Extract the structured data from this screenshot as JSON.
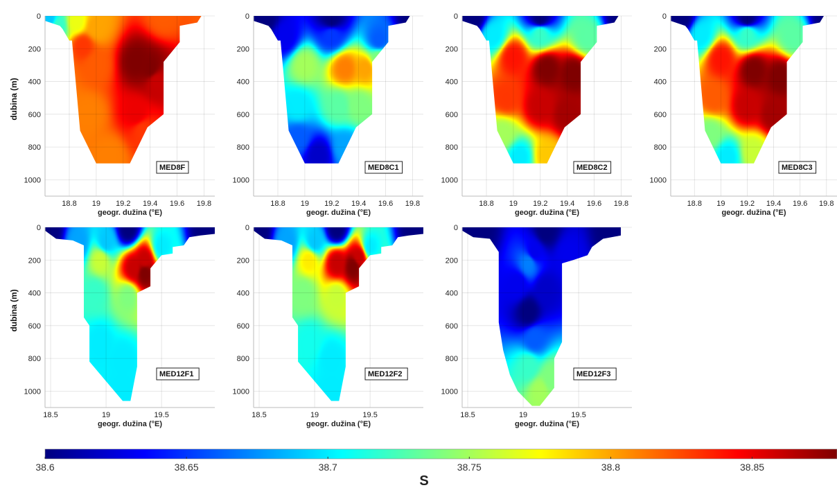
{
  "colors": {
    "jet": [
      "#00007f",
      "#0000ff",
      "#007fff",
      "#00ffff",
      "#7fff7f",
      "#ffff00",
      "#ff7f00",
      "#ff0000",
      "#7f0000"
    ]
  },
  "chart_data": [
    {
      "type": "heatmap",
      "label": "MED8F",
      "xlabel": "geogr. dužina (°E)",
      "ylabel": "dubina (m)",
      "xlim": [
        18.62,
        19.88
      ],
      "ylim": [
        0,
        1100
      ],
      "xticks": [
        18.8,
        19,
        19.2,
        19.4,
        19.6,
        19.8
      ],
      "xticklabels": [
        "18.8",
        "19",
        "19.2",
        "19.4",
        "19.6",
        "19.8"
      ],
      "yticks": [
        0,
        200,
        400,
        600,
        800,
        1000
      ],
      "yticklabels": [
        "0",
        "200",
        "400",
        "600",
        "800",
        "1000"
      ],
      "grid": true,
      "outline": [
        [
          18.62,
          30
        ],
        [
          18.73,
          60
        ],
        [
          18.75,
          80
        ],
        [
          18.8,
          150
        ],
        [
          18.82,
          150
        ],
        [
          18.88,
          700
        ],
        [
          19.0,
          900
        ],
        [
          19.25,
          900
        ],
        [
          19.38,
          680
        ],
        [
          19.5,
          600
        ],
        [
          19.5,
          280
        ],
        [
          19.62,
          160
        ],
        [
          19.62,
          60
        ],
        [
          19.75,
          40
        ],
        [
          19.78,
          0
        ],
        [
          19.88,
          0
        ],
        [
          19.88,
          10
        ]
      ],
      "field": [
        [
          18.65,
          20,
          38.69
        ],
        [
          18.72,
          60,
          38.72
        ],
        [
          18.85,
          40,
          38.77
        ],
        [
          19.0,
          70,
          38.8
        ],
        [
          19.5,
          0,
          38.82
        ],
        [
          19.85,
          10,
          38.82
        ],
        [
          18.9,
          180,
          38.83
        ],
        [
          19.3,
          280,
          38.88
        ],
        [
          19.4,
          320,
          38.88
        ],
        [
          19.45,
          400,
          38.86
        ],
        [
          19.0,
          300,
          38.82
        ],
        [
          18.95,
          600,
          38.81
        ],
        [
          19.1,
          850,
          38.81
        ],
        [
          19.3,
          600,
          38.85
        ],
        [
          19.35,
          700,
          38.83
        ]
      ]
    },
    {
      "type": "heatmap",
      "label": "MED8C1",
      "xlabel": "geogr. dužina (°E)",
      "ylabel": "",
      "xlim": [
        18.62,
        19.88
      ],
      "ylim": [
        0,
        1100
      ],
      "xticks": [
        18.8,
        19,
        19.2,
        19.4,
        19.6,
        19.8
      ],
      "xticklabels": [
        "18.8",
        "19",
        "19.2",
        "19.4",
        "19.6",
        "19.8"
      ],
      "yticks": [
        0,
        200,
        400,
        600,
        800,
        1000
      ],
      "yticklabels": [
        "0",
        "200",
        "400",
        "600",
        "800",
        "1000"
      ],
      "grid": true,
      "outline": [
        [
          18.62,
          30
        ],
        [
          18.73,
          60
        ],
        [
          18.75,
          80
        ],
        [
          18.8,
          150
        ],
        [
          18.82,
          150
        ],
        [
          18.88,
          700
        ],
        [
          19.0,
          900
        ],
        [
          19.25,
          900
        ],
        [
          19.38,
          680
        ],
        [
          19.5,
          600
        ],
        [
          19.5,
          280
        ],
        [
          19.62,
          160
        ],
        [
          19.62,
          60
        ],
        [
          19.75,
          40
        ],
        [
          19.78,
          0
        ],
        [
          19.88,
          0
        ],
        [
          19.88,
          10
        ]
      ],
      "field": [
        [
          18.7,
          20,
          38.6
        ],
        [
          19.2,
          20,
          38.6
        ],
        [
          19.8,
          10,
          38.6
        ],
        [
          18.85,
          130,
          38.63
        ],
        [
          19.2,
          120,
          38.65
        ],
        [
          19.55,
          150,
          38.66
        ],
        [
          19.0,
          300,
          38.75
        ],
        [
          19.3,
          320,
          38.81
        ],
        [
          19.45,
          320,
          38.8
        ],
        [
          19.55,
          260,
          38.74
        ],
        [
          18.95,
          550,
          38.7
        ],
        [
          19.25,
          550,
          38.73
        ],
        [
          19.4,
          550,
          38.74
        ],
        [
          18.95,
          750,
          38.66
        ],
        [
          19.1,
          850,
          38.62
        ],
        [
          19.3,
          800,
          38.68
        ]
      ]
    },
    {
      "type": "heatmap",
      "label": "MED8C2",
      "xlabel": "geogr. dužina (°E)",
      "ylabel": "",
      "xlim": [
        18.62,
        19.88
      ],
      "ylim": [
        0,
        1100
      ],
      "xticks": [
        18.8,
        19,
        19.2,
        19.4,
        19.6,
        19.8
      ],
      "xticklabels": [
        "18.8",
        "19",
        "19.2",
        "19.4",
        "19.6",
        "19.8"
      ],
      "yticks": [
        0,
        200,
        400,
        600,
        800,
        1000
      ],
      "yticklabels": [
        "0",
        "200",
        "400",
        "600",
        "800",
        "1000"
      ],
      "grid": true,
      "outline": [
        [
          18.62,
          30
        ],
        [
          18.73,
          60
        ],
        [
          18.75,
          80
        ],
        [
          18.8,
          150
        ],
        [
          18.82,
          150
        ],
        [
          18.88,
          700
        ],
        [
          19.0,
          900
        ],
        [
          19.25,
          900
        ],
        [
          19.38,
          680
        ],
        [
          19.5,
          600
        ],
        [
          19.5,
          280
        ],
        [
          19.62,
          160
        ],
        [
          19.62,
          60
        ],
        [
          19.75,
          40
        ],
        [
          19.78,
          0
        ],
        [
          19.88,
          0
        ],
        [
          19.88,
          10
        ]
      ],
      "field": [
        [
          18.7,
          15,
          38.6
        ],
        [
          19.2,
          15,
          38.6
        ],
        [
          19.8,
          10,
          38.6
        ],
        [
          18.85,
          120,
          38.7
        ],
        [
          19.2,
          110,
          38.72
        ],
        [
          19.55,
          130,
          38.73
        ],
        [
          19.0,
          250,
          38.84
        ],
        [
          19.25,
          320,
          38.88
        ],
        [
          19.45,
          350,
          38.88
        ],
        [
          18.95,
          500,
          38.83
        ],
        [
          19.2,
          550,
          38.86
        ],
        [
          19.4,
          600,
          38.87
        ],
        [
          18.92,
          720,
          38.75
        ],
        [
          19.05,
          860,
          38.7
        ],
        [
          19.25,
          850,
          38.79
        ]
      ]
    },
    {
      "type": "heatmap",
      "label": "MED8C3",
      "xlabel": "geogr. dužina (°E)",
      "ylabel": "",
      "xlim": [
        18.62,
        19.88
      ],
      "ylim": [
        0,
        1100
      ],
      "xticks": [
        18.8,
        19,
        19.2,
        19.4,
        19.6,
        19.8
      ],
      "xticklabels": [
        "18.8",
        "19",
        "19.2",
        "19.4",
        "19.6",
        "19.8"
      ],
      "yticks": [
        0,
        200,
        400,
        600,
        800,
        1000
      ],
      "yticklabels": [
        "0",
        "200",
        "400",
        "600",
        "800",
        "1000"
      ],
      "grid": true,
      "outline": [
        [
          18.62,
          30
        ],
        [
          18.73,
          60
        ],
        [
          18.75,
          80
        ],
        [
          18.8,
          150
        ],
        [
          18.82,
          150
        ],
        [
          18.88,
          700
        ],
        [
          19.0,
          900
        ],
        [
          19.25,
          900
        ],
        [
          19.38,
          680
        ],
        [
          19.5,
          600
        ],
        [
          19.5,
          280
        ],
        [
          19.62,
          160
        ],
        [
          19.62,
          60
        ],
        [
          19.75,
          40
        ],
        [
          19.78,
          0
        ],
        [
          19.88,
          0
        ],
        [
          19.88,
          10
        ]
      ],
      "field": [
        [
          18.7,
          15,
          38.6
        ],
        [
          19.2,
          15,
          38.6
        ],
        [
          19.8,
          10,
          38.6
        ],
        [
          18.85,
          120,
          38.7
        ],
        [
          19.2,
          110,
          38.72
        ],
        [
          19.55,
          130,
          38.73
        ],
        [
          19.0,
          260,
          38.84
        ],
        [
          19.25,
          330,
          38.88
        ],
        [
          19.45,
          370,
          38.88
        ],
        [
          18.95,
          500,
          38.82
        ],
        [
          19.2,
          550,
          38.86
        ],
        [
          19.4,
          600,
          38.87
        ],
        [
          18.92,
          720,
          38.74
        ],
        [
          19.05,
          860,
          38.7
        ],
        [
          19.25,
          830,
          38.76
        ]
      ]
    },
    {
      "type": "heatmap",
      "label": "MED12F1",
      "xlabel": "geogr. dužina (°E)",
      "ylabel": "dubina (m)",
      "xlim": [
        18.45,
        19.98
      ],
      "ylim": [
        0,
        1100
      ],
      "xticks": [
        18.5,
        19,
        19.5
      ],
      "xticklabels": [
        "18.5",
        "19",
        "19.5"
      ],
      "yticks": [
        0,
        200,
        400,
        600,
        800,
        1000
      ],
      "yticklabels": [
        "0",
        "200",
        "400",
        "600",
        "800",
        "1000"
      ],
      "grid": true,
      "outline": [
        [
          18.45,
          20
        ],
        [
          18.55,
          70
        ],
        [
          18.7,
          80
        ],
        [
          18.8,
          110
        ],
        [
          18.8,
          550
        ],
        [
          18.85,
          600
        ],
        [
          18.85,
          820
        ],
        [
          19.15,
          1060
        ],
        [
          19.22,
          1060
        ],
        [
          19.28,
          850
        ],
        [
          19.28,
          400
        ],
        [
          19.4,
          360
        ],
        [
          19.4,
          250
        ],
        [
          19.5,
          170
        ],
        [
          19.6,
          160
        ],
        [
          19.6,
          120
        ],
        [
          19.7,
          110
        ],
        [
          19.75,
          60
        ],
        [
          19.85,
          50
        ],
        [
          19.98,
          40
        ],
        [
          19.98,
          0
        ]
      ],
      "field": [
        [
          18.5,
          20,
          38.6
        ],
        [
          19.2,
          10,
          38.6
        ],
        [
          19.9,
          10,
          38.6
        ],
        [
          18.75,
          100,
          38.68
        ],
        [
          19.0,
          90,
          38.69
        ],
        [
          19.5,
          120,
          38.7
        ],
        [
          18.95,
          200,
          38.76
        ],
        [
          19.25,
          250,
          38.86
        ],
        [
          19.35,
          280,
          38.88
        ],
        [
          19.35,
          200,
          38.86
        ],
        [
          18.9,
          400,
          38.72
        ],
        [
          19.2,
          420,
          38.74
        ],
        [
          18.95,
          700,
          38.7
        ],
        [
          19.15,
          800,
          38.7
        ],
        [
          19.15,
          1000,
          38.7
        ]
      ]
    },
    {
      "type": "heatmap",
      "label": "MED12F2",
      "xlabel": "geogr. dužina (°E)",
      "ylabel": "",
      "xlim": [
        18.45,
        19.98
      ],
      "ylim": [
        0,
        1100
      ],
      "xticks": [
        18.5,
        19,
        19.5
      ],
      "xticklabels": [
        "18.5",
        "19",
        "19.5"
      ],
      "yticks": [
        0,
        200,
        400,
        600,
        800,
        1000
      ],
      "yticklabels": [
        "0",
        "200",
        "400",
        "600",
        "800",
        "1000"
      ],
      "grid": true,
      "outline": [
        [
          18.45,
          20
        ],
        [
          18.55,
          70
        ],
        [
          18.7,
          80
        ],
        [
          18.8,
          110
        ],
        [
          18.8,
          550
        ],
        [
          18.85,
          600
        ],
        [
          18.85,
          820
        ],
        [
          19.15,
          1060
        ],
        [
          19.22,
          1060
        ],
        [
          19.28,
          850
        ],
        [
          19.28,
          400
        ],
        [
          19.4,
          360
        ],
        [
          19.4,
          250
        ],
        [
          19.5,
          170
        ],
        [
          19.6,
          160
        ],
        [
          19.6,
          120
        ],
        [
          19.7,
          110
        ],
        [
          19.75,
          60
        ],
        [
          19.85,
          50
        ],
        [
          19.98,
          40
        ],
        [
          19.98,
          0
        ]
      ],
      "field": [
        [
          18.5,
          20,
          38.6
        ],
        [
          19.2,
          10,
          38.6
        ],
        [
          19.9,
          10,
          38.6
        ],
        [
          18.75,
          100,
          38.68
        ],
        [
          19.0,
          90,
          38.69
        ],
        [
          19.5,
          120,
          38.7
        ],
        [
          18.95,
          200,
          38.78
        ],
        [
          19.2,
          220,
          38.86
        ],
        [
          19.35,
          240,
          38.88
        ],
        [
          19.4,
          180,
          38.86
        ],
        [
          18.9,
          400,
          38.74
        ],
        [
          19.2,
          420,
          38.76
        ],
        [
          18.95,
          700,
          38.71
        ],
        [
          19.15,
          800,
          38.7
        ],
        [
          19.15,
          1000,
          38.7
        ]
      ]
    },
    {
      "type": "heatmap",
      "label": "MED12F3",
      "xlabel": "geogr. dužina (°E)",
      "ylabel": "",
      "xlim": [
        18.45,
        19.98
      ],
      "ylim": [
        0,
        1100
      ],
      "xticks": [
        18.5,
        19,
        19.5
      ],
      "xticklabels": [
        "18.5",
        "19",
        "19.5"
      ],
      "yticks": [
        0,
        200,
        400,
        600,
        800,
        1000
      ],
      "yticklabels": [
        "0",
        "200",
        "400",
        "600",
        "800",
        "1000"
      ],
      "grid": true,
      "outline": [
        [
          18.45,
          0
        ],
        [
          18.45,
          20
        ],
        [
          18.55,
          60
        ],
        [
          18.7,
          70
        ],
        [
          18.78,
          150
        ],
        [
          18.78,
          580
        ],
        [
          18.82,
          750
        ],
        [
          18.88,
          900
        ],
        [
          18.95,
          1000
        ],
        [
          19.08,
          1090
        ],
        [
          19.15,
          1090
        ],
        [
          19.28,
          980
        ],
        [
          19.28,
          800
        ],
        [
          19.35,
          700
        ],
        [
          19.35,
          220
        ],
        [
          19.45,
          200
        ],
        [
          19.58,
          170
        ],
        [
          19.62,
          120
        ],
        [
          19.72,
          70
        ],
        [
          19.88,
          50
        ],
        [
          19.88,
          0
        ]
      ],
      "field": [
        [
          18.6,
          20,
          38.6
        ],
        [
          19.2,
          20,
          38.6
        ],
        [
          19.8,
          20,
          38.6
        ],
        [
          19.1,
          150,
          38.63
        ],
        [
          19.05,
          220,
          38.67
        ],
        [
          19.4,
          180,
          38.63
        ],
        [
          18.95,
          350,
          38.63
        ],
        [
          19.2,
          380,
          38.62
        ],
        [
          19.05,
          520,
          38.6
        ],
        [
          19.1,
          680,
          38.66
        ],
        [
          19.05,
          850,
          38.72
        ],
        [
          19.15,
          1000,
          38.75
        ],
        [
          19.25,
          920,
          38.74
        ]
      ]
    }
  ],
  "colorbar": {
    "min": 38.6,
    "max": 38.88,
    "ticks": [
      38.6,
      38.65,
      38.7,
      38.75,
      38.8,
      38.85
    ],
    "ticklabels": [
      "38.6",
      "38.65",
      "38.7",
      "38.75",
      "38.8",
      "38.85"
    ],
    "title": "S"
  }
}
